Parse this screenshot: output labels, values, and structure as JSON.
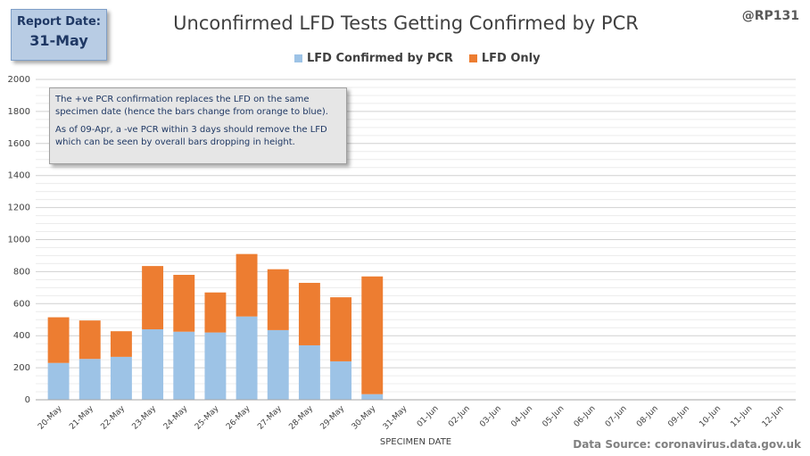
{
  "report": {
    "label": "Report Date:",
    "date": "31-May"
  },
  "title": "Unconfirmed LFD Tests Getting Confirmed by PCR",
  "handle": "@RP131",
  "legend": {
    "confirmed": "LFD Confirmed by PCR",
    "lfd_only": "LFD Only"
  },
  "colors": {
    "confirmed": "#9dc3e6",
    "lfd_only": "#ed7d31"
  },
  "note": {
    "line1": "The +ve PCR confirmation replaces the LFD on the same specimen date (hence the bars change from orange to blue).",
    "line2": "As of 09-Apr, a -ve PCR within 3 days should remove the LFD which can be seen by overall bars dropping  in height."
  },
  "source": "Data Source: coronavirus.data.gov.uk",
  "chart_data": {
    "type": "bar",
    "stacked": true,
    "title": "Unconfirmed LFD Tests Getting Confirmed by PCR",
    "xlabel": "SPECIMEN DATE",
    "ylabel": "",
    "ylim": [
      0,
      2000
    ],
    "yticks": [
      0,
      200,
      400,
      600,
      800,
      1000,
      1200,
      1400,
      1600,
      1800,
      2000
    ],
    "grid": true,
    "legend_position": "top",
    "categories": [
      "20-May",
      "21-May",
      "22-May",
      "23-May",
      "24-May",
      "25-May",
      "26-May",
      "27-May",
      "28-May",
      "29-May",
      "30-May",
      "31-May",
      "01-Jun",
      "02-Jun",
      "03-Jun",
      "04-Jun",
      "05-Jun",
      "06-Jun",
      "07-Jun",
      "08-Jun",
      "09-Jun",
      "10-Jun",
      "11-Jun",
      "12-Jun"
    ],
    "series": [
      {
        "name": "LFD Confirmed by PCR",
        "values": [
          230,
          255,
          268,
          440,
          425,
          420,
          520,
          435,
          340,
          240,
          35,
          0,
          0,
          0,
          0,
          0,
          0,
          0,
          0,
          0,
          0,
          0,
          0,
          0
        ]
      },
      {
        "name": "LFD Only",
        "values": [
          285,
          240,
          160,
          395,
          355,
          250,
          390,
          380,
          390,
          400,
          735,
          0,
          0,
          0,
          0,
          0,
          0,
          0,
          0,
          0,
          0,
          0,
          0,
          0
        ]
      }
    ]
  }
}
